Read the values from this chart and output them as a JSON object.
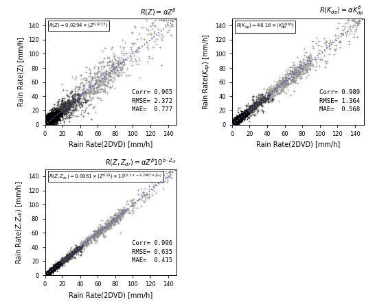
{
  "fig_width": 5.46,
  "fig_height": 4.46,
  "dpi": 100,
  "background_color": "#ffffff",
  "plots": [
    {
      "title_top_right": "$R(Z)=\\alpha Z^\\beta$",
      "formula_box": "$R(Z)=0.0294\\times(Z^{0.6713})$",
      "ylabel": "Rain Rate(Z) [mm/h]",
      "xlabel": "Rain Rate(2DVD) [mm/h]",
      "corr": "0.965",
      "rmse": "2.372",
      "mae": "0.777",
      "noise_dense": 5.0,
      "noise_sparse": 20.0
    },
    {
      "title_top_right": "$R(K_{dp})=\\alpha K_{dp}^\\beta$",
      "formula_box": "$R(K_{dp})=48.16\\times(K_{dp}^{0.865})$",
      "ylabel": "Rain Rate($K_{dp}$) [mm/h]",
      "xlabel": "Rain Rate(2DVD) [mm/h]",
      "corr": "0.989",
      "rmse": "1.364",
      "mae": "0.568",
      "noise_dense": 2.5,
      "noise_sparse": 10.0
    },
    {
      "title_top_right": "$R(Z,Z_{dr})=\\alpha Z^\\beta 10^{b\\cdot Z_{dr}}$",
      "formula_box": "$R(Z,Z_{dr})=0.0061\\times(Z^{0.91})\\times10^{(0.1\\times-4.2467\\times Z_{dr})}$",
      "ylabel": "Rain Rate($Z, Z_{dr}$) [mm/h]",
      "xlabel": "Rain Rate(2DVD) [mm/h]",
      "corr": "0.996",
      "rmse": "0.635",
      "mae": "0.415",
      "noise_dense": 1.5,
      "noise_sparse": 6.0
    }
  ],
  "xlim": [
    0,
    150
  ],
  "ylim": [
    0,
    150
  ],
  "xticks": [
    0,
    20,
    40,
    60,
    80,
    100,
    120,
    140
  ],
  "yticks": [
    0,
    20,
    40,
    60,
    80,
    100,
    120,
    140
  ],
  "fit_line_color": "#5555cc",
  "dense_color": "#000000",
  "sparse_color": "#888888"
}
